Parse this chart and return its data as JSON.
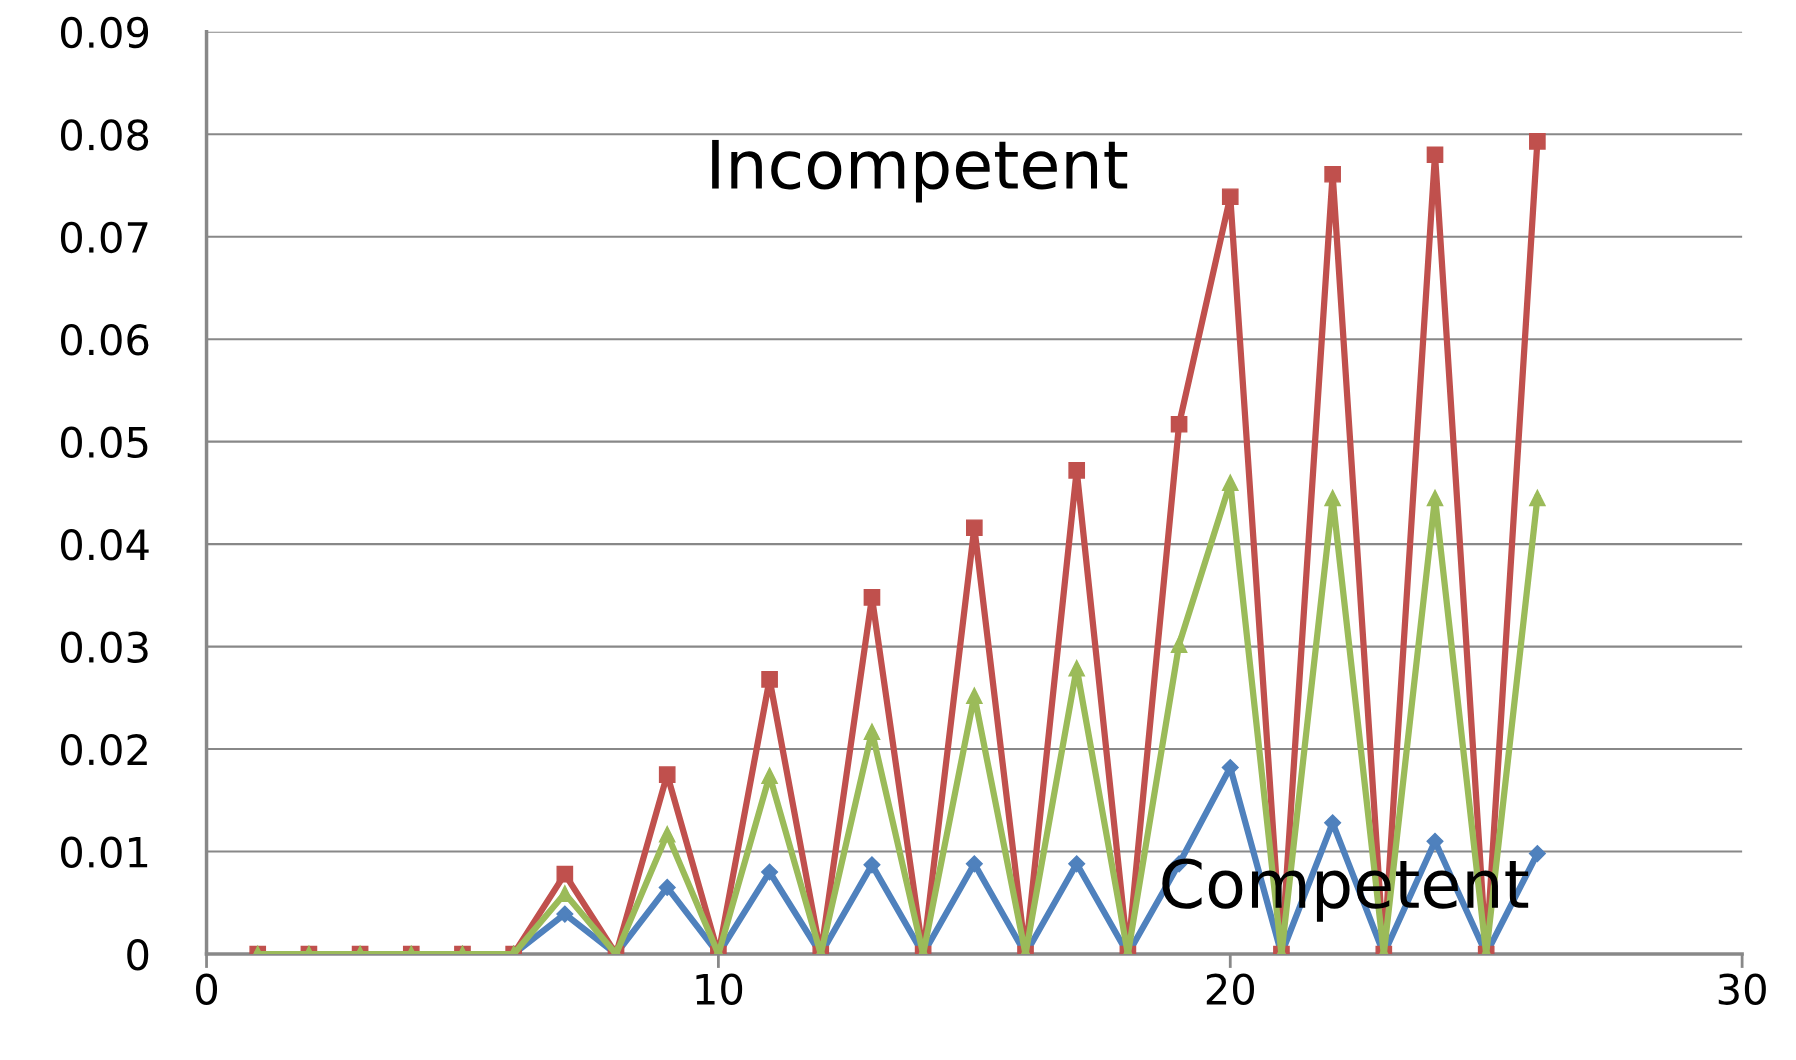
{
  "chart_data": {
    "type": "line",
    "x": [
      1,
      2,
      3,
      4,
      5,
      6,
      7,
      8,
      9,
      10,
      11,
      12,
      13,
      14,
      15,
      16,
      17,
      18,
      19,
      20,
      21,
      22,
      23,
      24,
      25,
      26
    ],
    "series": [
      {
        "color": "#4f81bd",
        "marker": "diamond",
        "values": [
          null,
          null,
          null,
          null,
          0,
          0,
          0.0039,
          0,
          0.0065,
          0,
          0.008,
          0,
          0.0087,
          0,
          0.0088,
          0,
          0.0088,
          0,
          0.0088,
          0.0182,
          0,
          0.0128,
          0,
          0.011,
          0,
          0.0098
        ]
      },
      {
        "color": "#c0504d",
        "marker": "square",
        "values": [
          0,
          0,
          0,
          0,
          0,
          0,
          0.0078,
          0,
          0.0175,
          0,
          0.0268,
          0,
          0.0348,
          0,
          0.0416,
          0,
          0.0472,
          0,
          0.0517,
          0.0739,
          0,
          0.0761,
          0,
          0.078,
          0,
          0.0793
        ]
      },
      {
        "color": "#9bbb59",
        "marker": "triangle",
        "values": [
          0,
          0,
          0,
          0,
          0,
          0,
          0.0059,
          0,
          0.0117,
          0,
          0.0174,
          0,
          0.0217,
          0,
          0.0252,
          0,
          0.0279,
          0,
          0.0302,
          0.046,
          0,
          0.0445,
          0,
          0.0445,
          0,
          0.0445
        ]
      }
    ],
    "annotations": [
      "Incompetent",
      "Competent"
    ],
    "xlim": [
      0,
      30
    ],
    "xticks": [
      0,
      10,
      20,
      30
    ],
    "ylim": [
      0,
      0.09
    ],
    "yticks": [
      0,
      0.01,
      0.02,
      0.03,
      0.04,
      0.05,
      0.06,
      0.07,
      0.08,
      0.09
    ],
    "grid": "y",
    "legend": false,
    "line_style": "solid"
  }
}
